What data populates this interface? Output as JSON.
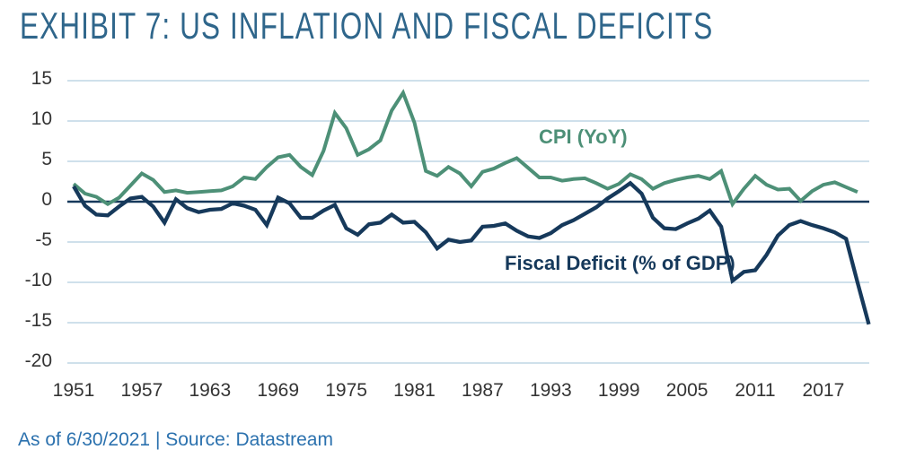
{
  "header": {
    "title": "EXHIBIT 7: US INFLATION AND FISCAL DEFICITS"
  },
  "footer": {
    "text": "As of 6/30/2021 | Source: Datastream"
  },
  "colors": {
    "title": "#2f668b",
    "footer": "#2b71ae",
    "tick": "#343434",
    "gridline": "#cfe0eb",
    "zero_line": "#16395b",
    "cpi": "#4d9077",
    "deficit": "#16395b"
  },
  "chart_data": {
    "type": "line",
    "title": "EXHIBIT 7: US INFLATION AND FISCAL DEFICITS",
    "xlabel": "",
    "ylabel": "",
    "xlim": [
      1951,
      2021
    ],
    "ylim": [
      -20,
      15
    ],
    "grid": "horizontal",
    "legend": "inline-labels-on-chart",
    "x_ticks": [
      1951,
      1957,
      1963,
      1969,
      1975,
      1981,
      1987,
      1993,
      1999,
      2005,
      2011,
      2017
    ],
    "y_ticks": [
      15,
      10,
      5,
      0,
      -5,
      -10,
      -15,
      -20
    ],
    "series": [
      {
        "name": "CPI (YoY)",
        "color": "#4d9077",
        "points": [
          [
            1951,
            2.2
          ],
          [
            1952,
            1.0
          ],
          [
            1953,
            0.6
          ],
          [
            1954,
            -0.3
          ],
          [
            1955,
            0.5
          ],
          [
            1956,
            2.0
          ],
          [
            1957,
            3.5
          ],
          [
            1958,
            2.7
          ],
          [
            1959,
            1.2
          ],
          [
            1960,
            1.4
          ],
          [
            1961,
            1.1
          ],
          [
            1962,
            1.2
          ],
          [
            1963,
            1.3
          ],
          [
            1964,
            1.4
          ],
          [
            1965,
            1.9
          ],
          [
            1966,
            3.0
          ],
          [
            1967,
            2.8
          ],
          [
            1968,
            4.3
          ],
          [
            1969,
            5.5
          ],
          [
            1970,
            5.8
          ],
          [
            1971,
            4.3
          ],
          [
            1972,
            3.3
          ],
          [
            1973,
            6.3
          ],
          [
            1974,
            11.0
          ],
          [
            1975,
            9.1
          ],
          [
            1976,
            5.8
          ],
          [
            1977,
            6.5
          ],
          [
            1978,
            7.6
          ],
          [
            1979,
            11.3
          ],
          [
            1980,
            13.5
          ],
          [
            1981,
            9.8
          ],
          [
            1982,
            3.8
          ],
          [
            1983,
            3.2
          ],
          [
            1984,
            4.3
          ],
          [
            1985,
            3.5
          ],
          [
            1986,
            1.9
          ],
          [
            1987,
            3.7
          ],
          [
            1988,
            4.1
          ],
          [
            1989,
            4.8
          ],
          [
            1990,
            5.4
          ],
          [
            1991,
            4.2
          ],
          [
            1992,
            3.0
          ],
          [
            1993,
            3.0
          ],
          [
            1994,
            2.6
          ],
          [
            1995,
            2.8
          ],
          [
            1996,
            2.9
          ],
          [
            1997,
            2.3
          ],
          [
            1998,
            1.6
          ],
          [
            1999,
            2.2
          ],
          [
            2000,
            3.4
          ],
          [
            2001,
            2.8
          ],
          [
            2002,
            1.6
          ],
          [
            2003,
            2.3
          ],
          [
            2004,
            2.7
          ],
          [
            2005,
            3.0
          ],
          [
            2006,
            3.2
          ],
          [
            2007,
            2.8
          ],
          [
            2008,
            3.8
          ],
          [
            2009,
            -0.3
          ],
          [
            2010,
            1.6
          ],
          [
            2011,
            3.2
          ],
          [
            2012,
            2.1
          ],
          [
            2013,
            1.5
          ],
          [
            2014,
            1.6
          ],
          [
            2015,
            0.1
          ],
          [
            2016,
            1.3
          ],
          [
            2017,
            2.1
          ],
          [
            2018,
            2.4
          ],
          [
            2019,
            1.8
          ],
          [
            2020,
            1.2
          ]
        ]
      },
      {
        "name": "Fiscal Deficit (% of GDP)",
        "color": "#16395b",
        "points": [
          [
            1951,
            1.9
          ],
          [
            1952,
            -0.5
          ],
          [
            1953,
            -1.6
          ],
          [
            1954,
            -1.7
          ],
          [
            1955,
            -0.6
          ],
          [
            1956,
            0.4
          ],
          [
            1957,
            0.6
          ],
          [
            1958,
            -0.6
          ],
          [
            1959,
            -2.6
          ],
          [
            1960,
            0.3
          ],
          [
            1961,
            -0.8
          ],
          [
            1962,
            -1.3
          ],
          [
            1963,
            -1.0
          ],
          [
            1964,
            -0.9
          ],
          [
            1965,
            -0.2
          ],
          [
            1966,
            -0.5
          ],
          [
            1967,
            -1.0
          ],
          [
            1968,
            -2.9
          ],
          [
            1969,
            0.5
          ],
          [
            1970,
            -0.2
          ],
          [
            1971,
            -2.0
          ],
          [
            1972,
            -2.0
          ],
          [
            1973,
            -1.1
          ],
          [
            1974,
            -0.4
          ],
          [
            1975,
            -3.3
          ],
          [
            1976,
            -4.1
          ],
          [
            1977,
            -2.8
          ],
          [
            1978,
            -2.6
          ],
          [
            1979,
            -1.6
          ],
          [
            1980,
            -2.6
          ],
          [
            1981,
            -2.5
          ],
          [
            1982,
            -3.8
          ],
          [
            1983,
            -5.8
          ],
          [
            1984,
            -4.7
          ],
          [
            1985,
            -5.0
          ],
          [
            1986,
            -4.8
          ],
          [
            1987,
            -3.1
          ],
          [
            1988,
            -3.0
          ],
          [
            1989,
            -2.7
          ],
          [
            1990,
            -3.6
          ],
          [
            1991,
            -4.3
          ],
          [
            1992,
            -4.5
          ],
          [
            1993,
            -3.9
          ],
          [
            1994,
            -2.9
          ],
          [
            1995,
            -2.3
          ],
          [
            1996,
            -1.5
          ],
          [
            1997,
            -0.7
          ],
          [
            1998,
            0.4
          ],
          [
            1999,
            1.3
          ],
          [
            2000,
            2.3
          ],
          [
            2001,
            1.0
          ],
          [
            2002,
            -2.0
          ],
          [
            2003,
            -3.3
          ],
          [
            2004,
            -3.4
          ],
          [
            2005,
            -2.7
          ],
          [
            2006,
            -2.1
          ],
          [
            2007,
            -1.1
          ],
          [
            2008,
            -3.1
          ],
          [
            2009,
            -9.8
          ],
          [
            2010,
            -8.7
          ],
          [
            2011,
            -8.5
          ],
          [
            2012,
            -6.6
          ],
          [
            2013,
            -4.2
          ],
          [
            2014,
            -2.9
          ],
          [
            2015,
            -2.4
          ],
          [
            2016,
            -2.9
          ],
          [
            2017,
            -3.3
          ],
          [
            2018,
            -3.8
          ],
          [
            2019,
            -4.6
          ],
          [
            2020,
            -10.0
          ],
          [
            2021,
            -15.2
          ]
        ]
      }
    ]
  }
}
